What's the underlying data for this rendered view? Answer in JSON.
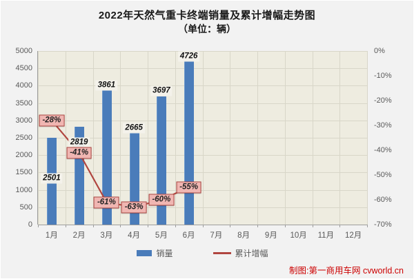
{
  "title": {
    "line1": "2022年天然气重卡终端销量及累计增幅走势图",
    "line2": "（单位：辆）"
  },
  "chart_data": {
    "type": "bar+line combo",
    "categories": [
      "1月",
      "2月",
      "3月",
      "4月",
      "5月",
      "6月",
      "7月",
      "8月",
      "9月",
      "10月",
      "11月",
      "12月"
    ],
    "series": [
      {
        "name": "销量",
        "type": "bar",
        "color": "#4a7cba",
        "axis": "left",
        "values": [
          2501,
          2819,
          3861,
          2665,
          3697,
          4726,
          null,
          null,
          null,
          null,
          null,
          null
        ],
        "value_labels": [
          "2501",
          "2819",
          "3861",
          "2665",
          "3697",
          "4726"
        ]
      },
      {
        "name": "累计增幅",
        "type": "line",
        "color": "#b0453f",
        "axis": "right",
        "values": [
          -28,
          -41,
          -61,
          -63,
          -60,
          -55,
          null,
          null,
          null,
          null,
          null,
          null
        ],
        "value_labels": [
          "-28%",
          "-41%",
          "-61%",
          "-63%",
          "-60%",
          "-55%"
        ]
      }
    ],
    "left_axis": {
      "min": 0,
      "max": 5000,
      "step": 500,
      "ticks": [
        "5000",
        "4500",
        "4000",
        "3500",
        "3000",
        "2500",
        "2000",
        "1500",
        "1000",
        "500",
        "0"
      ]
    },
    "right_axis": {
      "min": -70,
      "max": 0,
      "step": 10,
      "ticks": [
        "0%",
        "-10%",
        "-20%",
        "-30%",
        "-40%",
        "-50%",
        "-60%",
        "-70%"
      ]
    },
    "grid": true,
    "legend_position": "bottom"
  },
  "legend": {
    "items": [
      {
        "label": "销量",
        "swatch": "bar",
        "color": "#4a7cba"
      },
      {
        "label": "累计增幅",
        "swatch": "line",
        "color": "#b0453f"
      }
    ]
  },
  "footer": {
    "credit": "制图:第一商用车网 cvworld.cn"
  },
  "colors": {
    "page_bg": "#f2f2f2",
    "plot_bg": "#eeece0",
    "gridline": "#d8d6c8",
    "bar": "#4a7cba",
    "line": "#b0453f",
    "pct_label_bg": "#f0b6b2",
    "pct_label_border": "#a84540",
    "axis_text": "#595959",
    "credit_text": "#cc0000"
  }
}
